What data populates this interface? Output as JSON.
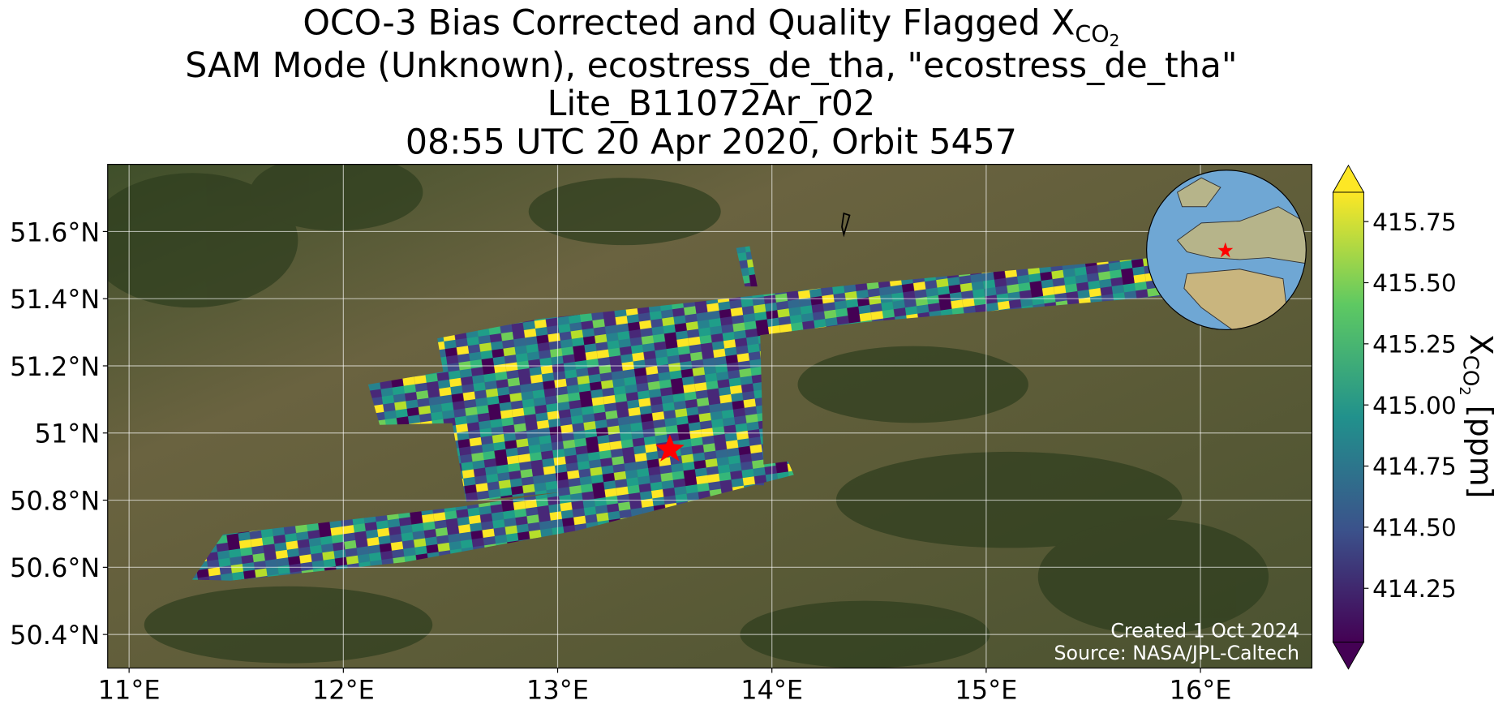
{
  "map": {
    "title": {
      "line1": "OCO-3 Bias Corrected and Quality Flagged X",
      "line1_sub": "CO",
      "line1_subsub": "2",
      "line2": "SAM Mode (Unknown), ecostress_de_tha, \"ecostress_de_tha\"",
      "line3": "Lite_B11072Ar_r02",
      "line4": "08:55 UTC 20 Apr 2020, Orbit 5457"
    },
    "xlim": [
      10.9,
      16.52
    ],
    "ylim": [
      50.3,
      51.8
    ],
    "xticks": [
      {
        "value": 11,
        "label": "11°E"
      },
      {
        "value": 12,
        "label": "12°E"
      },
      {
        "value": 13,
        "label": "13°E"
      },
      {
        "value": 14,
        "label": "14°E"
      },
      {
        "value": 15,
        "label": "15°E"
      },
      {
        "value": 16,
        "label": "16°E"
      }
    ],
    "yticks": [
      {
        "value": 50.4,
        "label": "50.4°N"
      },
      {
        "value": 50.6,
        "label": "50.6°N"
      },
      {
        "value": 50.8,
        "label": "50.8°N"
      },
      {
        "value": 51,
        "label": "51°N"
      },
      {
        "value": 51.2,
        "label": "51.2°N"
      },
      {
        "value": 51.4,
        "label": "51.4°N"
      },
      {
        "value": 51.6,
        "label": "51.6°N"
      }
    ],
    "grid": true,
    "colorbar": {
      "clim": [
        414.03,
        415.87
      ],
      "ticks": [
        414.25,
        {
          "value": 414.5,
          "label": "414.50"
        },
        414.75,
        {
          "value": 415,
          "label": "415.00"
        },
        415.25,
        {
          "value": 415.5,
          "label": "415.50"
        },
        415.75
      ],
      "label": "X",
      "label_sub": "CO",
      "label_subsub": "2",
      "label_unit": " [ppm]"
    },
    "credits": [
      "Created 1 Oct 2024",
      "Source: NASA/JPL-Caltech"
    ]
  }
}
